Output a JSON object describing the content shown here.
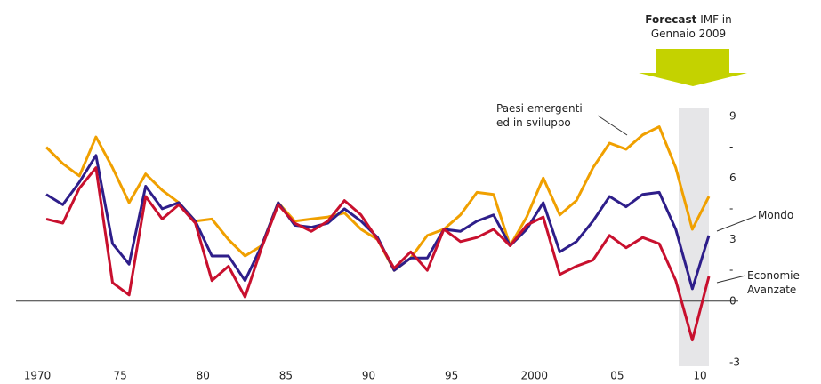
{
  "chart_data": {
    "type": "line",
    "annotation": {
      "bold": "Forecast",
      "text": "IMF in Gennaio 2009"
    },
    "x": [
      1970,
      1971,
      1972,
      1973,
      1974,
      1975,
      1976,
      1977,
      1978,
      1979,
      1980,
      1981,
      1982,
      1983,
      1984,
      1985,
      1986,
      1987,
      1988,
      1989,
      1990,
      1991,
      1992,
      1993,
      1994,
      1995,
      1996,
      1997,
      1998,
      1999,
      2000,
      2001,
      2002,
      2003,
      2004,
      2005,
      2006,
      2007,
      2008,
      2009,
      2010
    ],
    "series": [
      {
        "name": "Paesi emergenti ed in sviluppo",
        "color": "#f0a000",
        "values": [
          7.5,
          6.7,
          6.1,
          8.0,
          6.5,
          4.8,
          6.2,
          5.4,
          4.8,
          3.9,
          4.0,
          3.0,
          2.2,
          2.7,
          4.8,
          3.9,
          4.0,
          4.1,
          4.3,
          3.5,
          3.0,
          1.5,
          2.1,
          3.2,
          3.5,
          4.2,
          5.3,
          5.2,
          2.7,
          4.1,
          6.0,
          4.2,
          4.9,
          6.5,
          7.7,
          7.4,
          8.1,
          8.5,
          6.5,
          3.5,
          5.1
        ]
      },
      {
        "name": "Mondo",
        "color": "#2e1e8a",
        "values": [
          5.2,
          4.7,
          5.8,
          7.1,
          2.8,
          1.8,
          5.6,
          4.5,
          4.8,
          3.9,
          2.2,
          2.2,
          1.0,
          2.7,
          4.8,
          3.7,
          3.6,
          3.8,
          4.5,
          3.9,
          3.1,
          1.5,
          2.1,
          2.1,
          3.5,
          3.4,
          3.9,
          4.2,
          2.7,
          3.5,
          4.8,
          2.4,
          2.9,
          3.9,
          5.1,
          4.6,
          5.2,
          5.3,
          3.5,
          0.6,
          3.2
        ]
      },
      {
        "name": "Economie Avanzate",
        "color": "#c8102e",
        "values": [
          4.0,
          3.8,
          5.5,
          6.5,
          0.9,
          0.3,
          5.1,
          4.0,
          4.7,
          3.8,
          1.0,
          1.7,
          0.2,
          2.6,
          4.7,
          3.8,
          3.4,
          3.9,
          4.9,
          4.2,
          3.0,
          1.6,
          2.4,
          1.5,
          3.5,
          2.9,
          3.1,
          3.5,
          2.7,
          3.7,
          4.1,
          1.3,
          1.7,
          2.0,
          3.2,
          2.6,
          3.1,
          2.8,
          1.0,
          -1.9,
          1.2
        ]
      }
    ],
    "xlim": [
      1970,
      2010
    ],
    "xticks": [
      {
        "value": 1970,
        "label": "1970"
      },
      {
        "value": 1975,
        "label": "75"
      },
      {
        "value": 1980,
        "label": "80"
      },
      {
        "value": 1985,
        "label": "85"
      },
      {
        "value": 1990,
        "label": "90"
      },
      {
        "value": 1995,
        "label": "95"
      },
      2000,
      {
        "value": 2005,
        "label": "05"
      },
      {
        "value": 2010,
        "label": "10"
      }
    ],
    "ylim": [
      -3,
      9
    ],
    "yticks": [
      -3,
      {
        "value": -1.5,
        "label": "-"
      },
      0,
      {
        "value": 1.5,
        "label": "-"
      },
      3,
      {
        "value": 4.5,
        "label": "-"
      },
      6,
      {
        "value": 7.5,
        "label": "-"
      },
      9
    ]
  }
}
